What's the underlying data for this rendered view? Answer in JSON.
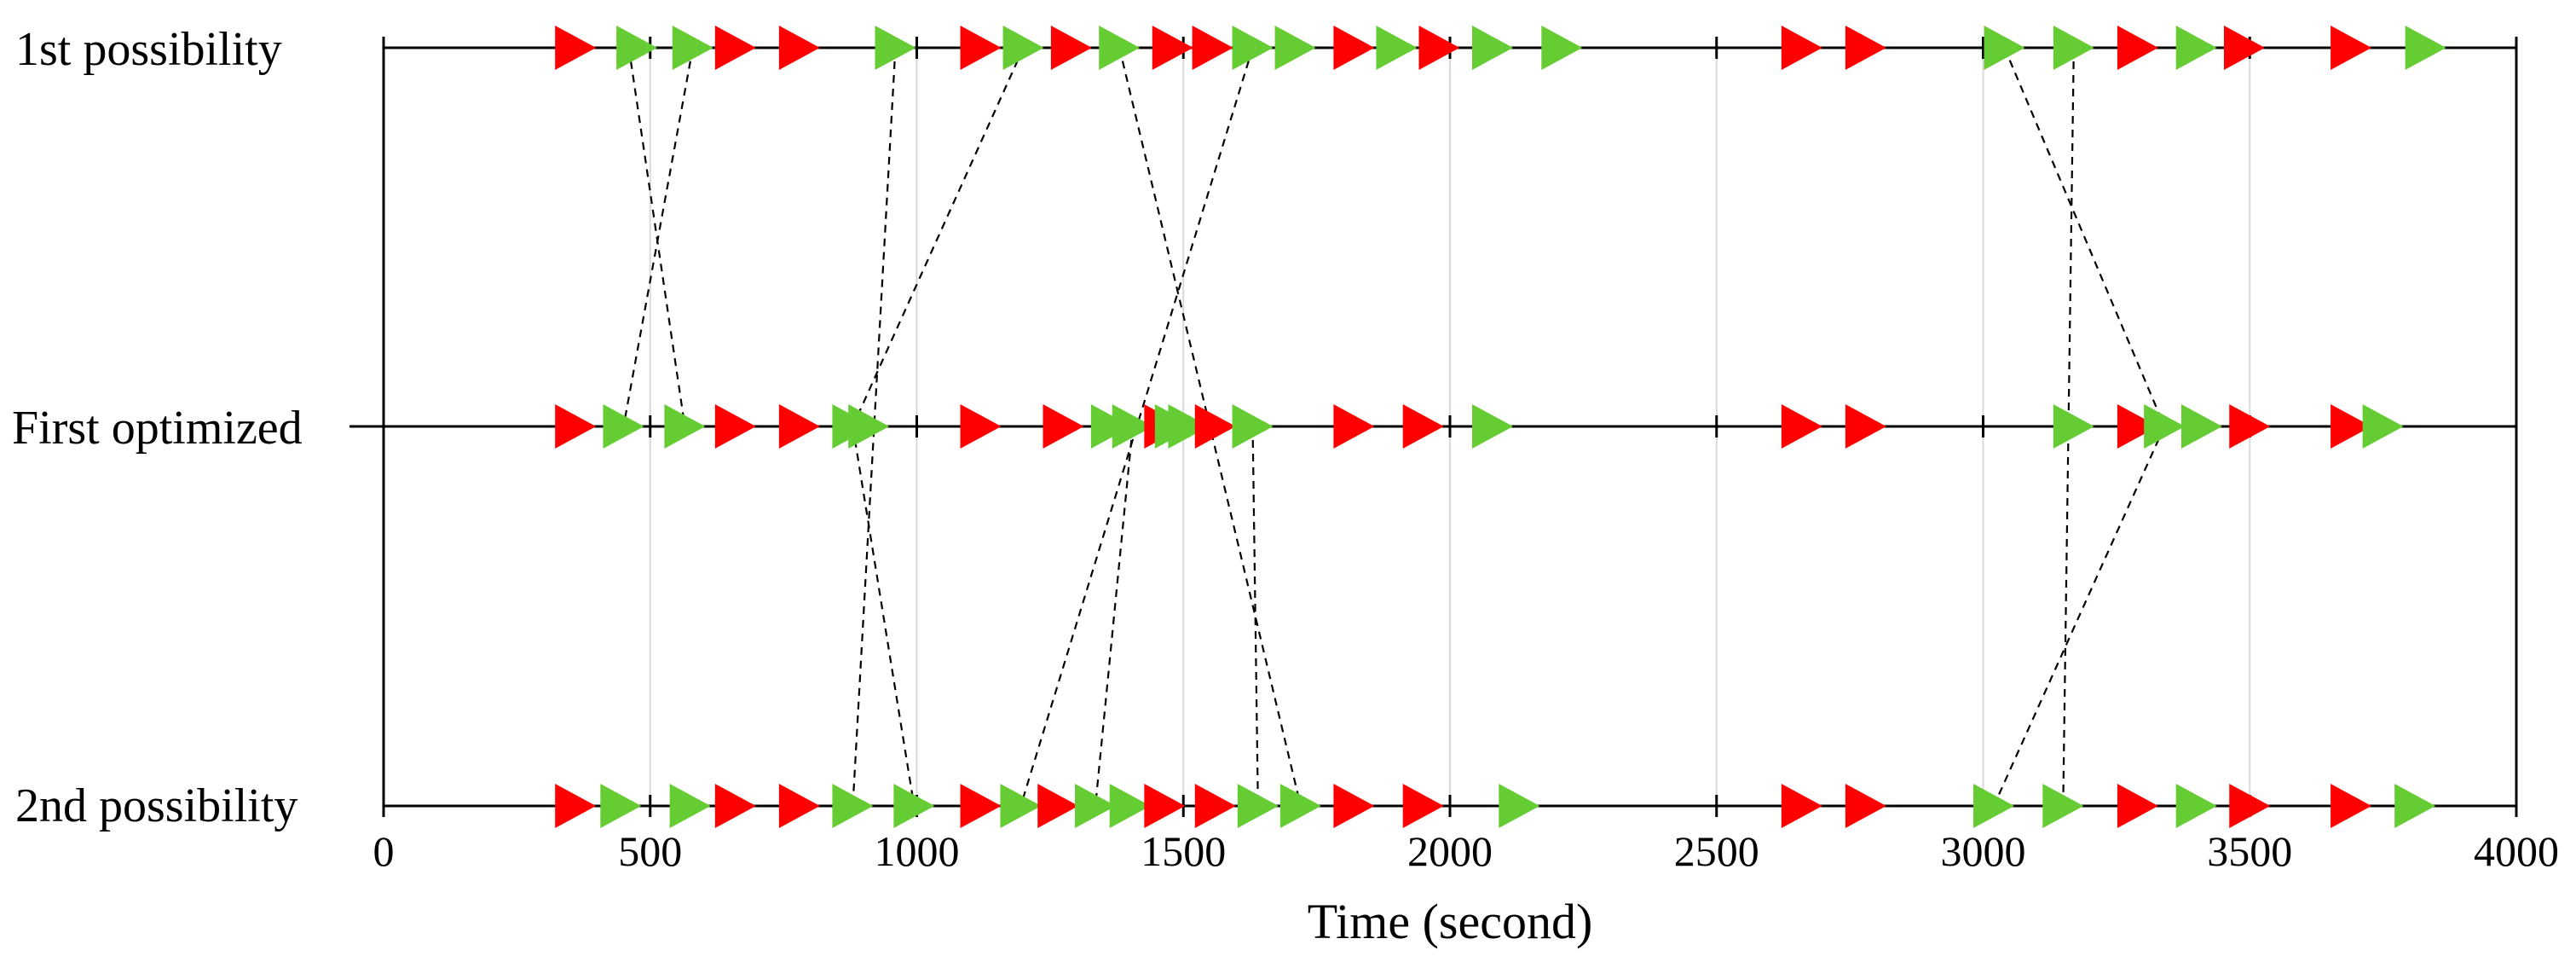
{
  "chart_data": {
    "type": "scatter",
    "title": "",
    "xlabel": "Time (second)",
    "ylabel": "",
    "xlim": [
      0,
      4000
    ],
    "xticks": [
      0,
      500,
      1000,
      1500,
      2000,
      2500,
      3000,
      3500,
      4000
    ],
    "grid": true,
    "rows": [
      "1st possibility",
      "First optimized",
      "2nd possibility"
    ],
    "colors": {
      "red": "#ff0000",
      "green": "#66cc33"
    },
    "series": [
      {
        "row": "1st possibility",
        "points": [
          {
            "t": 360,
            "c": "red"
          },
          {
            "t": 475,
            "c": "green"
          },
          {
            "t": 580,
            "c": "green"
          },
          {
            "t": 660,
            "c": "red"
          },
          {
            "t": 780,
            "c": "red"
          },
          {
            "t": 960,
            "c": "green"
          },
          {
            "t": 1120,
            "c": "red"
          },
          {
            "t": 1200,
            "c": "green"
          },
          {
            "t": 1290,
            "c": "red"
          },
          {
            "t": 1380,
            "c": "green"
          },
          {
            "t": 1480,
            "c": "red"
          },
          {
            "t": 1555,
            "c": "red"
          },
          {
            "t": 1630,
            "c": "green"
          },
          {
            "t": 1710,
            "c": "green"
          },
          {
            "t": 1820,
            "c": "red"
          },
          {
            "t": 1900,
            "c": "green"
          },
          {
            "t": 1980,
            "c": "red"
          },
          {
            "t": 2080,
            "c": "green"
          },
          {
            "t": 2210,
            "c": "green"
          },
          {
            "t": 2660,
            "c": "red"
          },
          {
            "t": 2780,
            "c": "red"
          },
          {
            "t": 3040,
            "c": "green"
          },
          {
            "t": 3170,
            "c": "green"
          },
          {
            "t": 3290,
            "c": "red"
          },
          {
            "t": 3400,
            "c": "green"
          },
          {
            "t": 3490,
            "c": "red"
          },
          {
            "t": 3690,
            "c": "red"
          },
          {
            "t": 3830,
            "c": "green"
          }
        ]
      },
      {
        "row": "First optimized",
        "points": [
          {
            "t": 360,
            "c": "red"
          },
          {
            "t": 450,
            "c": "green"
          },
          {
            "t": 565,
            "c": "green"
          },
          {
            "t": 660,
            "c": "red"
          },
          {
            "t": 780,
            "c": "red"
          },
          {
            "t": 880,
            "c": "green"
          },
          {
            "t": 910,
            "c": "green"
          },
          {
            "t": 1120,
            "c": "red"
          },
          {
            "t": 1275,
            "c": "red"
          },
          {
            "t": 1365,
            "c": "green"
          },
          {
            "t": 1405,
            "c": "green"
          },
          {
            "t": 1465,
            "c": "red"
          },
          {
            "t": 1485,
            "c": "green"
          },
          {
            "t": 1510,
            "c": "green"
          },
          {
            "t": 1560,
            "c": "red"
          },
          {
            "t": 1630,
            "c": "green"
          },
          {
            "t": 1820,
            "c": "red"
          },
          {
            "t": 1950,
            "c": "red"
          },
          {
            "t": 2080,
            "c": "green"
          },
          {
            "t": 2660,
            "c": "red"
          },
          {
            "t": 2780,
            "c": "red"
          },
          {
            "t": 3170,
            "c": "green"
          },
          {
            "t": 3290,
            "c": "red"
          },
          {
            "t": 3340,
            "c": "green"
          },
          {
            "t": 3410,
            "c": "green"
          },
          {
            "t": 3500,
            "c": "red"
          },
          {
            "t": 3690,
            "c": "red"
          },
          {
            "t": 3750,
            "c": "green"
          }
        ]
      },
      {
        "row": "2nd possibility",
        "points": [
          {
            "t": 360,
            "c": "red"
          },
          {
            "t": 445,
            "c": "green"
          },
          {
            "t": 575,
            "c": "green"
          },
          {
            "t": 660,
            "c": "red"
          },
          {
            "t": 780,
            "c": "red"
          },
          {
            "t": 880,
            "c": "green"
          },
          {
            "t": 995,
            "c": "green"
          },
          {
            "t": 1120,
            "c": "red"
          },
          {
            "t": 1195,
            "c": "green"
          },
          {
            "t": 1265,
            "c": "red"
          },
          {
            "t": 1335,
            "c": "green"
          },
          {
            "t": 1400,
            "c": "green"
          },
          {
            "t": 1465,
            "c": "red"
          },
          {
            "t": 1560,
            "c": "red"
          },
          {
            "t": 1640,
            "c": "green"
          },
          {
            "t": 1720,
            "c": "green"
          },
          {
            "t": 1820,
            "c": "red"
          },
          {
            "t": 1950,
            "c": "red"
          },
          {
            "t": 2130,
            "c": "green"
          },
          {
            "t": 2660,
            "c": "red"
          },
          {
            "t": 2780,
            "c": "red"
          },
          {
            "t": 3020,
            "c": "green"
          },
          {
            "t": 3150,
            "c": "green"
          },
          {
            "t": 3290,
            "c": "red"
          },
          {
            "t": 3400,
            "c": "green"
          },
          {
            "t": 3500,
            "c": "red"
          },
          {
            "t": 3690,
            "c": "red"
          },
          {
            "t": 3810,
            "c": "green"
          }
        ]
      }
    ],
    "connections": [
      {
        "from_row": 0,
        "from_t": 460,
        "to_row": 1,
        "to_t": 565
      },
      {
        "from_row": 0,
        "from_t": 580,
        "to_row": 1,
        "to_t": 450
      },
      {
        "from_row": 0,
        "from_t": 960,
        "to_row": 2,
        "to_t": 880
      },
      {
        "from_row": 0,
        "from_t": 1200,
        "to_row": 1,
        "to_t": 880
      },
      {
        "from_row": 1,
        "from_t": 880,
        "to_row": 2,
        "to_t": 995
      },
      {
        "from_row": 0,
        "from_t": 1380,
        "to_row": 2,
        "to_t": 1720
      },
      {
        "from_row": 0,
        "from_t": 1630,
        "to_row": 2,
        "to_t": 1195
      },
      {
        "from_row": 1,
        "from_t": 1405,
        "to_row": 2,
        "to_t": 1335
      },
      {
        "from_row": 1,
        "from_t": 1630,
        "to_row": 2,
        "to_t": 1640
      },
      {
        "from_row": 0,
        "from_t": 3040,
        "to_row": 1,
        "to_t": 3340
      },
      {
        "from_row": 0,
        "from_t": 3170,
        "to_row": 2,
        "to_t": 3150
      },
      {
        "from_row": 1,
        "from_t": 3340,
        "to_row": 2,
        "to_t": 3020
      }
    ]
  }
}
